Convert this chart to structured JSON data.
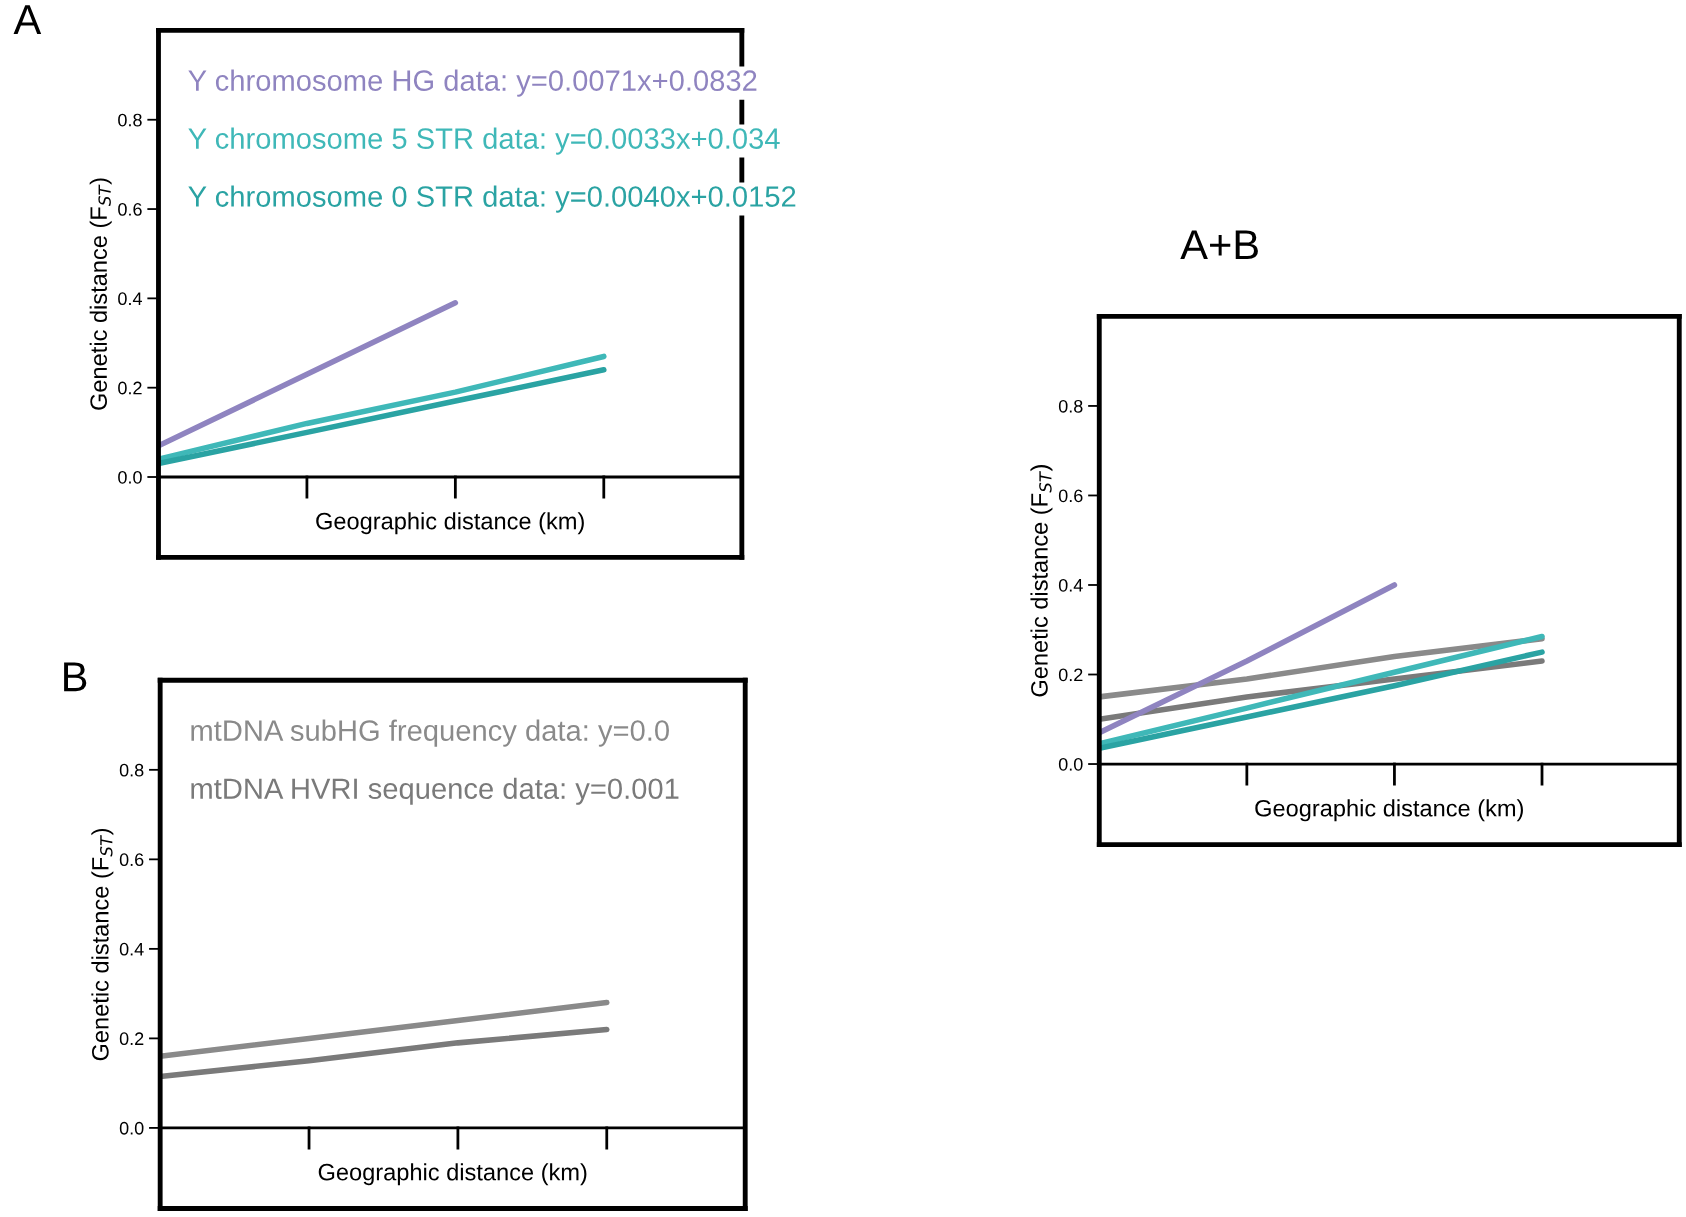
{
  "chart_data": [
    {
      "type": "line",
      "title": "A",
      "xlabel": "Geographic distance (km)",
      "ylabel": "Genetic distance (F$_{ST}$)",
      "categories": [
        null,
        null,
        null,
        null
      ],
      "ylim": [
        -0.18,
        1.0
      ],
      "yticks": [
        {
          "value": 0,
          "label": "0.0"
        },
        {
          "value": 0.2,
          "label": "0.2"
        },
        {
          "value": 0.4,
          "label": "0.4"
        },
        {
          "value": 0.6,
          "label": "0.6"
        },
        {
          "value": 0.8,
          "label": "0.8"
        }
      ],
      "grid": false,
      "tick_labels": "y",
      "ref_lines": [
        {
          "axis": "y",
          "value": 0,
          "color": "#000000"
        }
      ],
      "series": [
        {
          "name": "Y chromosome HG data: y=0.0071x+0.0832",
          "color": "#8f84c0",
          "values": [
            0.07,
            0.23,
            0.39,
            null
          ]
        },
        {
          "name": "Y chromosome 5 STR data: y=0.0033x+0.034",
          "color": "#3fb8b8",
          "values": [
            0.04,
            0.12,
            0.19,
            0.27
          ]
        },
        {
          "name": "Y chromosome 0 STR data: y=0.0040x+0.0152",
          "color": "#2aa3a3",
          "values": [
            0.03,
            0.1,
            0.17,
            0.24
          ]
        }
      ]
    },
    {
      "type": "line",
      "title": "B",
      "xlabel": "Geographic distance (km)",
      "ylabel": "Genetic distance (F$_{ST}$)",
      "categories": [
        null,
        null,
        null,
        null
      ],
      "ylim": [
        -0.18,
        1.0
      ],
      "yticks": [
        {
          "value": 0,
          "label": "0.0"
        },
        {
          "value": 0.2,
          "label": "0.2"
        },
        {
          "value": 0.4,
          "label": "0.4"
        },
        {
          "value": 0.6,
          "label": "0.6"
        },
        {
          "value": 0.8,
          "label": "0.8"
        }
      ],
      "grid": false,
      "tick_labels": "y",
      "ref_lines": [
        {
          "axis": "y",
          "value": 0,
          "color": "#000000"
        }
      ],
      "series": [
        {
          "name": "mtDNA subHG frequency data: y=0.0",
          "color": "#8a8a8a",
          "values": [
            0.16,
            0.2,
            0.24,
            0.28
          ]
        },
        {
          "name": "mtDNA HVRI sequence data: y=0.001",
          "color": "#7a7a7a",
          "values": [
            0.115,
            0.15,
            0.19,
            0.22
          ]
        }
      ]
    },
    {
      "type": "line",
      "title": "A+B",
      "xlabel": "Geographic distance (km)",
      "ylabel": "Genetic distance (F$_{ST}$)",
      "categories": [
        null,
        null,
        null,
        null
      ],
      "ylim": [
        -0.18,
        1.0
      ],
      "yticks": [
        {
          "value": 0,
          "label": "0.0"
        },
        {
          "value": 0.2,
          "label": "0.2"
        },
        {
          "value": 0.4,
          "label": "0.4"
        },
        {
          "value": 0.6,
          "label": "0.6"
        },
        {
          "value": 0.8,
          "label": "0.8"
        }
      ],
      "grid": false,
      "tick_labels": "y",
      "ref_lines": [
        {
          "axis": "y",
          "value": 0,
          "color": "#000000"
        }
      ],
      "series": [
        {
          "color": "#8a8a8a",
          "values": [
            0.15,
            0.19,
            0.24,
            0.28
          ]
        },
        {
          "color": "#7a7a7a",
          "values": [
            0.1,
            0.15,
            0.19,
            0.23
          ]
        },
        {
          "color": "#8f84c0",
          "values": [
            0.07,
            0.23,
            0.4,
            null
          ]
        },
        {
          "color": "#3fb8b8",
          "values": [
            0.045,
            0.125,
            0.205,
            0.285
          ]
        },
        {
          "color": "#2aa3a3",
          "values": [
            0.035,
            0.105,
            0.175,
            0.25
          ]
        }
      ]
    }
  ]
}
